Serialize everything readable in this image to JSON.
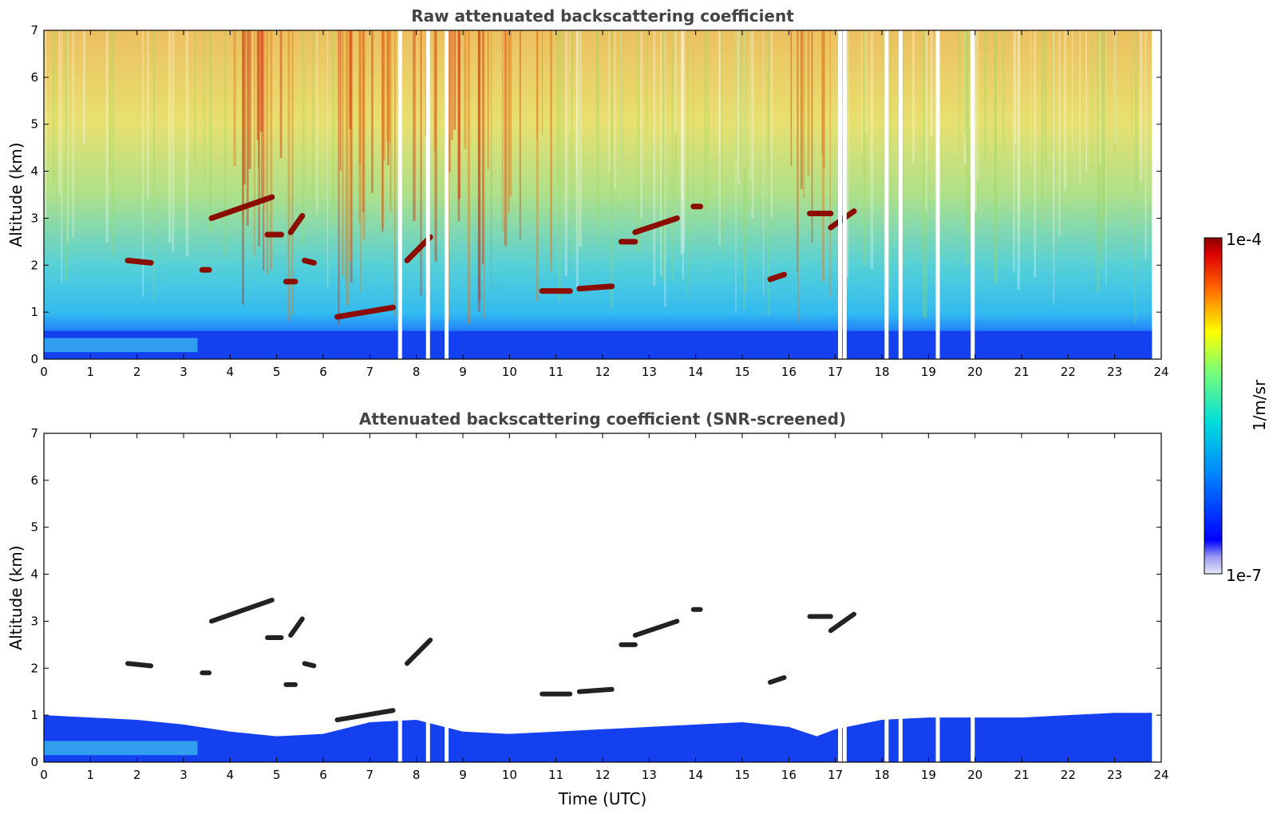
{
  "chart_data": [
    {
      "type": "heatmap",
      "title": "Raw attenuated backscattering coefficient",
      "xlabel": "",
      "ylabel": "Altitude (km)",
      "xlim": [
        0,
        24
      ],
      "ylim": [
        0,
        7
      ],
      "x_ticks": [
        "0",
        "1",
        "2",
        "3",
        "4",
        "5",
        "6",
        "7",
        "8",
        "9",
        "10",
        "11",
        "12",
        "13",
        "14",
        "15",
        "16",
        "17",
        "18",
        "19",
        "20",
        "21",
        "22",
        "23",
        "24"
      ],
      "y_ticks": [
        "0",
        "1",
        "2",
        "3",
        "4",
        "5",
        "6",
        "7"
      ],
      "data_end_time": 23.8,
      "grid": false,
      "boundary_layer_top_km": 0.6,
      "noise_background": "noisy, increasing with altitude (blue near surface to yellow/red aloft)",
      "data_gaps_utc": [
        7.65,
        8.25,
        8.65,
        17.1,
        17.2,
        18.1,
        18.4,
        19.2,
        19.95
      ],
      "cloud_features": [
        {
          "start": 1.8,
          "end": 2.3,
          "alt_start_km": 2.1,
          "alt_end_km": 2.05
        },
        {
          "start": 3.6,
          "end": 4.9,
          "alt_start_km": 3.0,
          "alt_end_km": 3.45
        },
        {
          "start": 4.8,
          "end": 5.1,
          "alt_start_km": 2.65,
          "alt_end_km": 2.65
        },
        {
          "start": 5.3,
          "end": 5.55,
          "alt_start_km": 2.7,
          "alt_end_km": 3.05
        },
        {
          "start": 5.2,
          "end": 5.4,
          "alt_start_km": 1.65,
          "alt_end_km": 1.65
        },
        {
          "start": 3.4,
          "end": 3.55,
          "alt_start_km": 1.9,
          "alt_end_km": 1.9
        },
        {
          "start": 5.6,
          "end": 5.8,
          "alt_start_km": 2.1,
          "alt_end_km": 2.05
        },
        {
          "start": 6.3,
          "end": 7.5,
          "alt_start_km": 0.9,
          "alt_end_km": 1.1
        },
        {
          "start": 7.8,
          "end": 8.3,
          "alt_start_km": 2.1,
          "alt_end_km": 2.6
        },
        {
          "start": 10.7,
          "end": 11.3,
          "alt_start_km": 1.45,
          "alt_end_km": 1.45
        },
        {
          "start": 11.5,
          "end": 12.2,
          "alt_start_km": 1.5,
          "alt_end_km": 1.55
        },
        {
          "start": 12.4,
          "end": 12.7,
          "alt_start_km": 2.5,
          "alt_end_km": 2.5
        },
        {
          "start": 12.7,
          "end": 13.6,
          "alt_start_km": 2.7,
          "alt_end_km": 3.0
        },
        {
          "start": 13.95,
          "end": 14.1,
          "alt_start_km": 3.25,
          "alt_end_km": 3.25
        },
        {
          "start": 15.6,
          "end": 15.9,
          "alt_start_km": 1.7,
          "alt_end_km": 1.8
        },
        {
          "start": 16.45,
          "end": 16.9,
          "alt_start_km": 3.1,
          "alt_end_km": 3.1
        },
        {
          "start": 16.9,
          "end": 17.4,
          "alt_start_km": 2.8,
          "alt_end_km": 3.15
        }
      ]
    },
    {
      "type": "heatmap",
      "title": "Attenuated backscattering coefficient (SNR-screened)",
      "xlabel": "Time (UTC)",
      "ylabel": "Altitude (km)",
      "xlim": [
        0,
        24
      ],
      "ylim": [
        0,
        7
      ],
      "x_ticks": [
        "0",
        "1",
        "2",
        "3",
        "4",
        "5",
        "6",
        "7",
        "8",
        "9",
        "10",
        "11",
        "12",
        "13",
        "14",
        "15",
        "16",
        "17",
        "18",
        "19",
        "20",
        "21",
        "22",
        "23",
        "24"
      ],
      "y_ticks": [
        "0",
        "1",
        "2",
        "3",
        "4",
        "5",
        "6",
        "7"
      ],
      "data_end_time": 23.8,
      "grid": false,
      "noise_background": "screened out (white)",
      "boundary_layer_top_km": [
        {
          "t": 0,
          "km": 1.0
        },
        {
          "t": 1,
          "km": 0.95
        },
        {
          "t": 2,
          "km": 0.9
        },
        {
          "t": 3,
          "km": 0.8
        },
        {
          "t": 4,
          "km": 0.65
        },
        {
          "t": 5,
          "km": 0.55
        },
        {
          "t": 6,
          "km": 0.6
        },
        {
          "t": 7,
          "km": 0.85
        },
        {
          "t": 8,
          "km": 0.9
        },
        {
          "t": 9,
          "km": 0.65
        },
        {
          "t": 10,
          "km": 0.6
        },
        {
          "t": 11,
          "km": 0.65
        },
        {
          "t": 12,
          "km": 0.7
        },
        {
          "t": 13,
          "km": 0.75
        },
        {
          "t": 14,
          "km": 0.8
        },
        {
          "t": 15,
          "km": 0.85
        },
        {
          "t": 16,
          "km": 0.75
        },
        {
          "t": 16.6,
          "km": 0.55
        },
        {
          "t": 17,
          "km": 0.7
        },
        {
          "t": 18,
          "km": 0.9
        },
        {
          "t": 19,
          "km": 0.95
        },
        {
          "t": 20,
          "km": 0.95
        },
        {
          "t": 21,
          "km": 0.95
        },
        {
          "t": 22,
          "km": 1.0
        },
        {
          "t": 23,
          "km": 1.05
        },
        {
          "t": 23.8,
          "km": 1.05
        }
      ]
    }
  ],
  "colorbar": {
    "label": "1/m/sr",
    "max_label": "1e-4",
    "min_label": "1e-7",
    "scale": "log",
    "colormap": "jet",
    "colors": [
      "#e8e8f8",
      "#0000ff",
      "#00ccff",
      "#88ff88",
      "#ffee00",
      "#ff5500",
      "#8b0000"
    ]
  }
}
